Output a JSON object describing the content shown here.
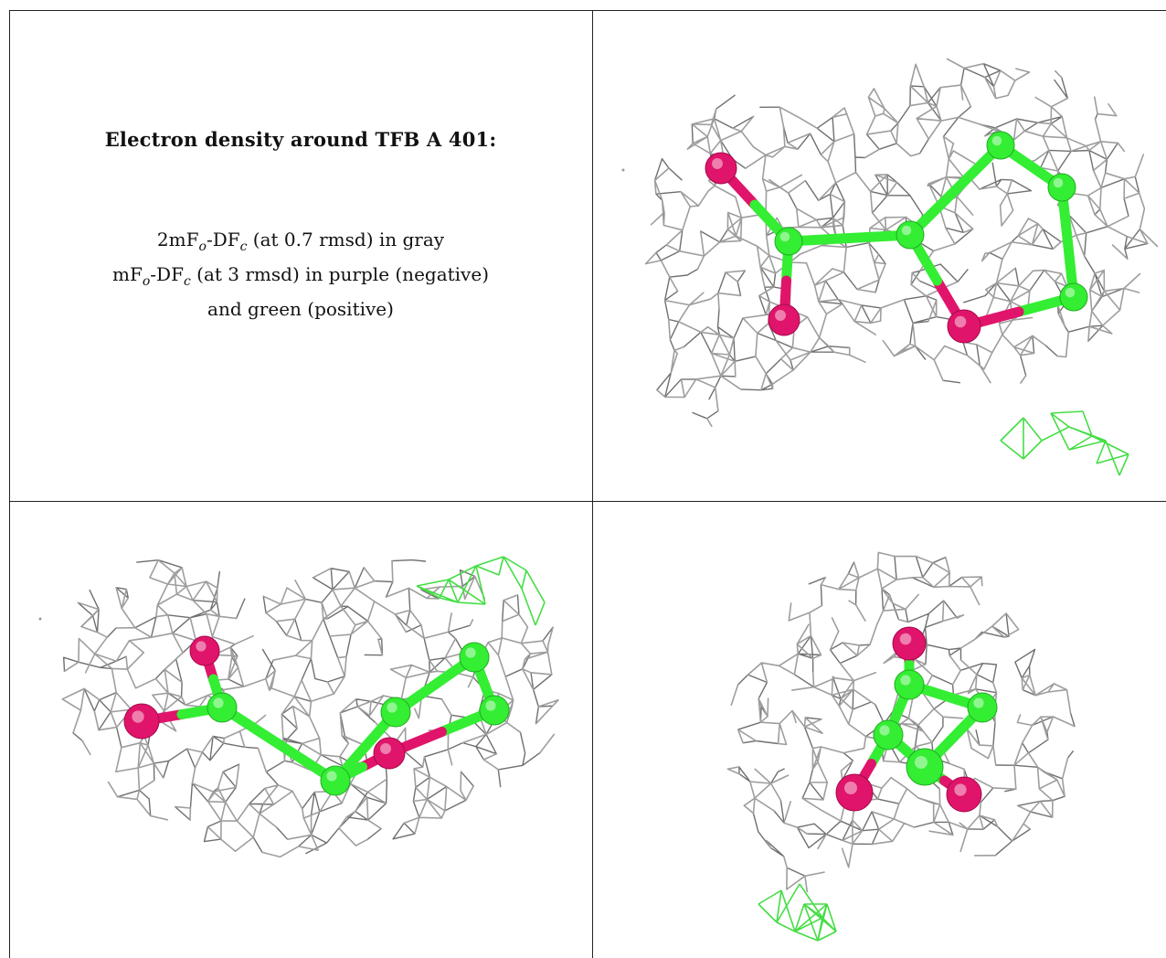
{
  "caption": {
    "title": "Electron density around TFB A 401:",
    "line1": "2mFₒ-DFᴄ (at 0.7 rmsd) in gray",
    "line2": "mFₒ-DFᴄ (at 3 rmsd) in purple (negative)",
    "line3": "and green (positive)"
  },
  "colors": {
    "mesh_gray": "#9e9e9e",
    "mesh_gray_dark": "#6f6f6f",
    "mesh_green": "#44dd44",
    "carbon": "#33ee33",
    "oxygen": "#e0146a",
    "border": "#222222"
  },
  "panels": [
    "view-1",
    "view-2",
    "view-3"
  ]
}
